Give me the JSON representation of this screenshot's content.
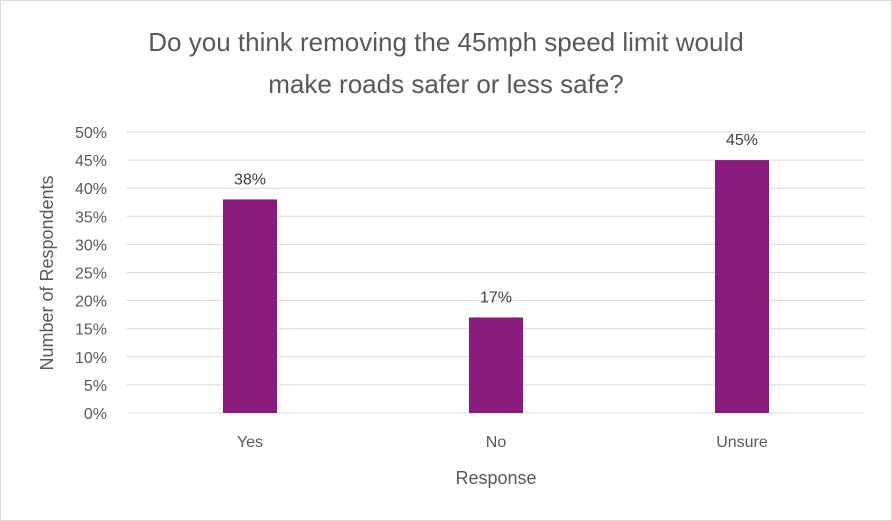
{
  "chart_data": {
    "type": "bar",
    "title_lines": [
      "Do you think removing the 45mph speed limit would",
      "make roads safer or less safe?"
    ],
    "categories": [
      "Yes",
      "No",
      "Unsure"
    ],
    "values": [
      38,
      17,
      45
    ],
    "value_labels": [
      "38%",
      "17%",
      "45%"
    ],
    "xlabel": "Response",
    "ylabel": "Number of Respondents",
    "ylim": [
      0,
      50
    ],
    "yticks": [
      0,
      5,
      10,
      15,
      20,
      25,
      30,
      35,
      40,
      45,
      50
    ],
    "ytick_labels": [
      "0%",
      "5%",
      "10%",
      "15%",
      "20%",
      "25%",
      "30%",
      "35%",
      "40%",
      "45%",
      "50%"
    ],
    "grid": true,
    "legend": "none",
    "bar_color": "#8B1A7E"
  }
}
